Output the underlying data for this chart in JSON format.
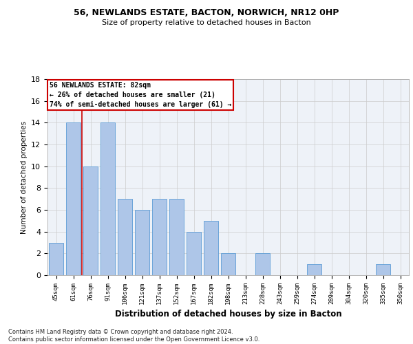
{
  "title1": "56, NEWLANDS ESTATE, BACTON, NORWICH, NR12 0HP",
  "title2": "Size of property relative to detached houses in Bacton",
  "xlabel": "Distribution of detached houses by size in Bacton",
  "ylabel": "Number of detached properties",
  "categories": [
    "45sqm",
    "61sqm",
    "76sqm",
    "91sqm",
    "106sqm",
    "121sqm",
    "137sqm",
    "152sqm",
    "167sqm",
    "182sqm",
    "198sqm",
    "213sqm",
    "228sqm",
    "243sqm",
    "259sqm",
    "274sqm",
    "289sqm",
    "304sqm",
    "320sqm",
    "335sqm",
    "350sqm"
  ],
  "values": [
    3,
    14,
    10,
    14,
    7,
    6,
    7,
    7,
    4,
    5,
    2,
    0,
    2,
    0,
    0,
    1,
    0,
    0,
    0,
    1,
    0
  ],
  "bar_color": "#aec6e8",
  "bar_edge_color": "#5b9bd5",
  "background_color": "#eef2f8",
  "grid_color": "#cccccc",
  "annotation_line1": "56 NEWLANDS ESTATE: 82sqm",
  "annotation_line2": "← 26% of detached houses are smaller (21)",
  "annotation_line3": "74% of semi-detached houses are larger (61) →",
  "annotation_box_color": "#cc0000",
  "property_line_x": 2,
  "ylim": [
    0,
    18
  ],
  "yticks": [
    0,
    2,
    4,
    6,
    8,
    10,
    12,
    14,
    16,
    18
  ],
  "footer_text": "Contains HM Land Registry data © Crown copyright and database right 2024.\nContains public sector information licensed under the Open Government Licence v3.0.",
  "fig_bg": "#ffffff"
}
